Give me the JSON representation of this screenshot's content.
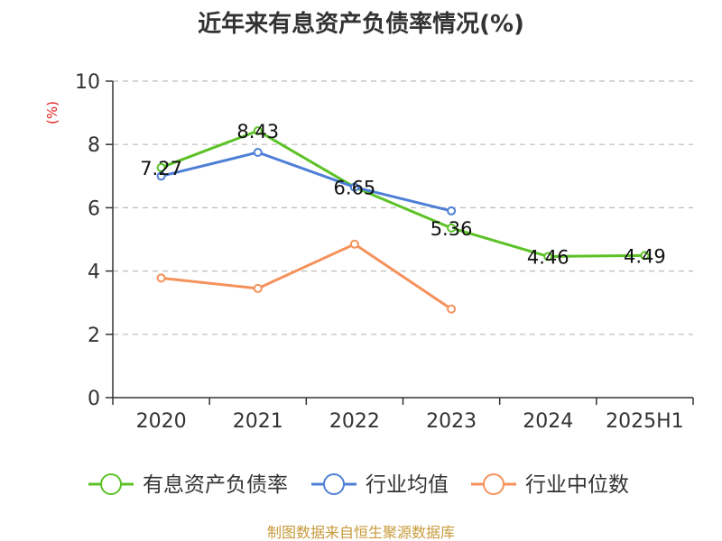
{
  "chart_data": {
    "type": "line",
    "title": "近年来有息资产负债率情况(%)",
    "ylabel": "(%)",
    "ylim": [
      0,
      10
    ],
    "yticks": [
      0,
      2,
      4,
      6,
      8,
      10
    ],
    "grid": true,
    "legend_position": "bottom",
    "categories": [
      "2020",
      "2021",
      "2022",
      "2023",
      "2024",
      "2025H1"
    ],
    "series": [
      {
        "name": "有息资产负债率",
        "color": "#5cc227",
        "values": [
          7.27,
          8.43,
          6.65,
          5.36,
          4.46,
          4.49
        ],
        "labels": [
          "7.27",
          "8.43",
          "6.65",
          "5.36",
          "4.46",
          "4.49"
        ]
      },
      {
        "name": "行业均值",
        "color": "#4e7fd6",
        "values": [
          7.0,
          7.75,
          6.65,
          5.9,
          null,
          null
        ]
      },
      {
        "name": "行业中位数",
        "color": "#f6925b",
        "values": [
          3.78,
          3.45,
          4.85,
          2.8,
          null,
          null
        ]
      }
    ],
    "source": "制图数据来自恒生聚源数据库"
  }
}
